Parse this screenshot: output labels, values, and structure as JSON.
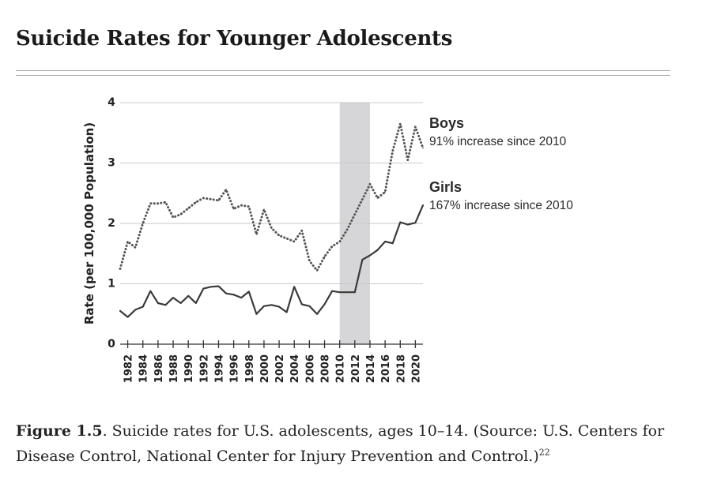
{
  "page": {
    "title": "Suicide Rates for Younger Adolescents",
    "caption": {
      "figure_label": "Figure 1.5",
      "text_line1": ". Suicide rates for U.S. adolescents, ages 10–14. (Source: U.S. Centers for",
      "text_line2": "Disease Control, National Center for Injury Prevention and Control.)",
      "footnote": "22"
    }
  },
  "chart_data": {
    "type": "line",
    "title": "",
    "ylabel": "Rate (per 100,000 Population)",
    "xlabel": "",
    "ylim": [
      0,
      4
    ],
    "yticks": [
      0,
      1,
      2,
      3,
      4
    ],
    "x": [
      1981,
      1982,
      1983,
      1984,
      1985,
      1986,
      1987,
      1988,
      1989,
      1990,
      1991,
      1992,
      1993,
      1994,
      1995,
      1996,
      1997,
      1998,
      1999,
      2000,
      2001,
      2002,
      2003,
      2004,
      2005,
      2006,
      2007,
      2008,
      2009,
      2010,
      2011,
      2012,
      2013,
      2014,
      2015,
      2016,
      2017,
      2018,
      2019,
      2020,
      2021
    ],
    "xtick_labels": [
      "1982",
      "1984",
      "1986",
      "1988",
      "1990",
      "1992",
      "1994",
      "1996",
      "1998",
      "2000",
      "2002",
      "2004",
      "2006",
      "2008",
      "2010",
      "2012",
      "2014",
      "2016",
      "2018",
      "2020"
    ],
    "highlight_range": [
      2010,
      2014
    ],
    "grid": "horizontal",
    "series": [
      {
        "name": "Boys",
        "note": "91% increase since 2010",
        "style": "dotted",
        "color": "#555555",
        "values": [
          1.25,
          1.7,
          1.6,
          2.0,
          2.33,
          2.33,
          2.35,
          2.1,
          2.15,
          2.25,
          2.35,
          2.42,
          2.4,
          2.38,
          2.56,
          2.24,
          2.3,
          2.28,
          1.82,
          2.23,
          1.92,
          1.8,
          1.75,
          1.7,
          1.88,
          1.38,
          1.22,
          1.45,
          1.62,
          1.7,
          1.9,
          2.15,
          2.4,
          2.65,
          2.42,
          2.52,
          3.2,
          3.65,
          3.05,
          3.6,
          3.25
        ]
      },
      {
        "name": "Girls",
        "note": "167% increase since 2010",
        "style": "solid",
        "color": "#3a3a3a",
        "values": [
          0.55,
          0.45,
          0.57,
          0.62,
          0.88,
          0.68,
          0.65,
          0.77,
          0.68,
          0.8,
          0.68,
          0.92,
          0.95,
          0.96,
          0.84,
          0.82,
          0.77,
          0.87,
          0.5,
          0.63,
          0.65,
          0.62,
          0.53,
          0.95,
          0.66,
          0.63,
          0.5,
          0.66,
          0.88,
          0.86,
          0.86,
          0.86,
          1.4,
          1.47,
          1.56,
          1.7,
          1.67,
          2.02,
          1.98,
          2.01,
          2.3
        ]
      }
    ]
  }
}
